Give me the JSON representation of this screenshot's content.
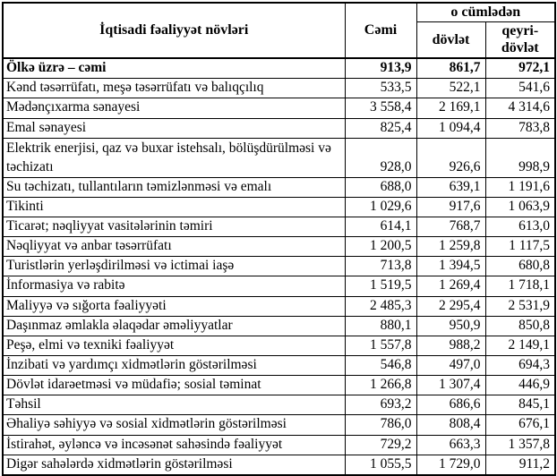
{
  "table": {
    "header": {
      "col_activity": "İqtisadi fəaliyyət növləri",
      "col_total": "Cəmi",
      "col_including": "o cümlədən",
      "col_state": "dövlət",
      "col_nonstate": "qeyri-dövlət"
    },
    "rows": [
      {
        "label": "Ölkə üzrə – cəmi",
        "total": "913,9",
        "state": "861,7",
        "nonstate": "972,1",
        "bold": true,
        "tall": false
      },
      {
        "label": "Kənd təsərrüfatı, meşə təsərrüfatı və balıqçılıq",
        "total": "533,5",
        "state": "522,1",
        "nonstate": "541,6",
        "bold": false,
        "tall": false
      },
      {
        "label": "Mədənçıxarma sənayesi",
        "total": "3 558,4",
        "state": "2 169,1",
        "nonstate": "4 314,6",
        "bold": false,
        "tall": false
      },
      {
        "label": "Emal sənayesi",
        "total": "825,4",
        "state": "1 094,4",
        "nonstate": "783,8",
        "bold": false,
        "tall": false
      },
      {
        "label": "Elektrik enerjisi, qaz və buxar istehsalı, bölüşdürülməsi və təchizatı",
        "total": "928,0",
        "state": "926,6",
        "nonstate": "998,9",
        "bold": false,
        "tall": true
      },
      {
        "label": "Su təchizatı, tullantıların təmizlənməsi və emalı",
        "total": "688,0",
        "state": "639,1",
        "nonstate": "1 191,6",
        "bold": false,
        "tall": false
      },
      {
        "label": "Tikinti",
        "total": "1 029,6",
        "state": "917,6",
        "nonstate": "1 063,9",
        "bold": false,
        "tall": false
      },
      {
        "label": "Ticarət; nəqliyyat vasitələrinin təmiri",
        "total": "614,1",
        "state": "768,7",
        "nonstate": "613,0",
        "bold": false,
        "tall": false
      },
      {
        "label": "Nəqliyyat və anbar təsərrüfatı",
        "total": "1 200,5",
        "state": "1 259,8",
        "nonstate": "1 117,5",
        "bold": false,
        "tall": false
      },
      {
        "label": "Turistlərin yerləşdirilməsi və ictimai iaşə",
        "total": "713,8",
        "state": "1 394,5",
        "nonstate": "680,8",
        "bold": false,
        "tall": false
      },
      {
        "label": "İnformasiya və rabitə",
        "total": "1 519,5",
        "state": "1 269,4",
        "nonstate": "1 718,1",
        "bold": false,
        "tall": false
      },
      {
        "label": "Maliyyə və sığorta fəaliyyəti",
        "total": "2 485,3",
        "state": "2 295,4",
        "nonstate": "2 531,9",
        "bold": false,
        "tall": false
      },
      {
        "label": "Daşınmaz əmlakla əlaqədar əməliyyatlar",
        "total": "880,1",
        "state": "950,9",
        "nonstate": "850,8",
        "bold": false,
        "tall": false
      },
      {
        "label": "Peşə, elmi və texniki fəaliyyət",
        "total": "1 557,8",
        "state": "988,2",
        "nonstate": "2 149,1",
        "bold": false,
        "tall": false
      },
      {
        "label": "İnzibati və yardımçı xidmətlərin göstərilməsi",
        "total": "546,8",
        "state": "497,0",
        "nonstate": "694,3",
        "bold": false,
        "tall": false
      },
      {
        "label": "Dövlət idarəetməsi və müdafiə; sosial təminat",
        "total": "1 266,8",
        "state": "1 307,4",
        "nonstate": "446,9",
        "bold": false,
        "tall": false
      },
      {
        "label": "Təhsil",
        "total": "693,2",
        "state": "686,6",
        "nonstate": "845,1",
        "bold": false,
        "tall": false
      },
      {
        "label": "Əhaliyə səhiyyə və sosial xidmətlərin göstərilməsi",
        "total": "786,0",
        "state": "808,4",
        "nonstate": "676,1",
        "bold": false,
        "tall": false
      },
      {
        "label": "İstirahət, əyləncə və incəsənət sahəsində fəaliyyət",
        "total": "729,2",
        "state": "663,3",
        "nonstate": "1 357,8",
        "bold": false,
        "tall": false
      },
      {
        "label": "Digər sahələrdə xidmətlərin göstərilməsi",
        "total": "1 055,5",
        "state": "1 729,0",
        "nonstate": "911,2",
        "bold": false,
        "tall": false
      }
    ]
  },
  "colors": {
    "border": "#000000",
    "text": "#000000",
    "background": "#ffffff"
  }
}
